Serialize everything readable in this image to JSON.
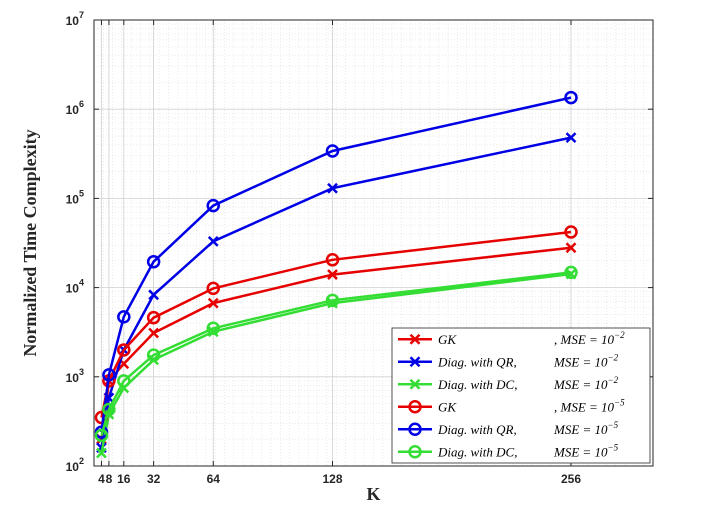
{
  "chart_data": {
    "type": "line",
    "xlabel": "K",
    "ylabel": "Normalized Time Complexity",
    "x": [
      4,
      8,
      16,
      32,
      64,
      128,
      256
    ],
    "x_tick_labels": [
      "4",
      "8",
      "16",
      "32",
      "64",
      "128",
      "256"
    ],
    "xlim": [
      0,
      300
    ],
    "ylim": [
      100,
      10000000
    ],
    "y_scale": "log",
    "y_ticks": [
      {
        "base": "10",
        "exp": "2"
      },
      {
        "base": "10",
        "exp": "3"
      },
      {
        "base": "10",
        "exp": "4"
      },
      {
        "base": "10",
        "exp": "5"
      },
      {
        "base": "10",
        "exp": "6"
      },
      {
        "base": "10",
        "exp": "7"
      }
    ],
    "grid": true,
    "legend_position": "bottom-right",
    "series": [
      {
        "name": "GK",
        "mse": "MSE = 10^-2",
        "legend": {
          "main": "GK",
          "mse": ", MSE = 10",
          "exp": "−2"
        },
        "color": "#e60000",
        "marker": "x",
        "values": [
          200,
          900,
          1400,
          3100,
          6700,
          14000,
          28000
        ]
      },
      {
        "name": "Diag. with QR",
        "mse": "MSE = 10^-2",
        "legend": {
          "main": "Diag. with QR,",
          "mse": "MSE = 10",
          "exp": "−2"
        },
        "color": "#0000e6",
        "marker": "x",
        "values": [
          160,
          580,
          2000,
          8300,
          33000,
          130000,
          480000
        ]
      },
      {
        "name": "Diag. with DC",
        "mse": "MSE = 10^-2",
        "legend": {
          "main": "Diag. with DC,",
          "mse": "MSE = 10",
          "exp": "−2"
        },
        "color": "#33dd33",
        "marker": "x",
        "values": [
          140,
          380,
          750,
          1550,
          3200,
          6700,
          14200
        ]
      },
      {
        "name": "GK",
        "mse": "MSE = 10^-5",
        "legend": {
          "main": "GK",
          "mse": ", MSE = 10",
          "exp": "−5"
        },
        "color": "#e60000",
        "marker": "o",
        "values": [
          350,
          900,
          2000,
          4600,
          9800,
          20500,
          42000
        ]
      },
      {
        "name": "Diag. with QR",
        "mse": "MSE = 10^-5",
        "legend": {
          "main": "Diag. with QR,",
          "mse": "MSE = 10",
          "exp": "−5"
        },
        "color": "#0000e6",
        "marker": "o",
        "values": [
          240,
          1050,
          4700,
          19500,
          83000,
          340000,
          1350000
        ]
      },
      {
        "name": "Diag. with DC",
        "mse": "MSE = 10^-5",
        "legend": {
          "main": "Diag. with DC,",
          "mse": "MSE = 10",
          "exp": "−5"
        },
        "color": "#33dd33",
        "marker": "o",
        "values": [
          220,
          430,
          900,
          1750,
          3500,
          7200,
          14800
        ]
      }
    ]
  }
}
